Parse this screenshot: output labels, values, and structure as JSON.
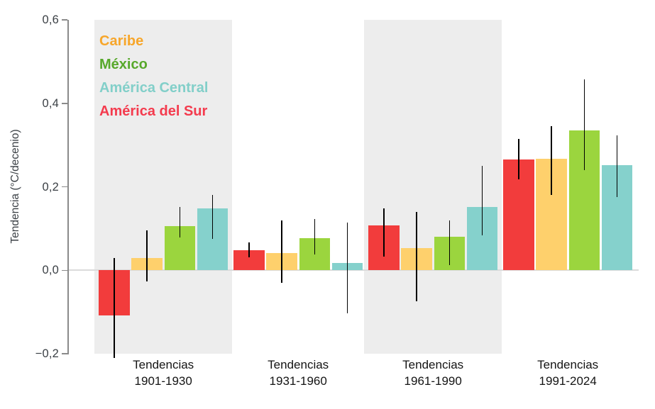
{
  "chart_data": {
    "type": "bar",
    "title": "",
    "ylabel": "Tendencia (°C/decenio)",
    "xlabel": "",
    "ylim": [
      -0.2,
      0.6
    ],
    "grid": "off",
    "legend_position": "top-left-inside",
    "yticks": [
      {
        "value": 0.6,
        "label": "0,6"
      },
      {
        "value": 0.4,
        "label": "0,4"
      },
      {
        "value": 0.2,
        "label": "0,2"
      },
      {
        "value": 0.0,
        "label": "0,0"
      },
      {
        "value": -0.2,
        "label": "−0,2"
      }
    ],
    "categories": [
      {
        "label": "Tendencias",
        "range": "1901-1930"
      },
      {
        "label": "Tendencias",
        "range": "1931-1960"
      },
      {
        "label": "Tendencias",
        "range": "1961-1990"
      },
      {
        "label": "Tendencias",
        "range": "1991-2024"
      }
    ],
    "shaded_groups": [
      0,
      2
    ],
    "series": [
      {
        "name": "América del Sur",
        "color": "#F23C3C",
        "values": [
          -0.108,
          0.048,
          0.107,
          0.265
        ],
        "err_lo": [
          -0.21,
          0.031,
          0.033,
          0.217
        ],
        "err_hi": [
          0.03,
          0.067,
          0.148,
          0.315
        ]
      },
      {
        "name": "Caribe",
        "color": "#FED06C",
        "values": [
          0.03,
          0.041,
          0.053,
          0.267
        ],
        "err_lo": [
          -0.026,
          -0.031,
          -0.074,
          0.18
        ],
        "err_hi": [
          0.095,
          0.12,
          0.14,
          0.345
        ]
      },
      {
        "name": "México",
        "color": "#9BD53E",
        "values": [
          0.105,
          0.077,
          0.08,
          0.335
        ],
        "err_lo": [
          0.079,
          0.037,
          0.013,
          0.24
        ],
        "err_hi": [
          0.152,
          0.122,
          0.12,
          0.458
        ]
      },
      {
        "name": "América Central",
        "color": "#85D1CC",
        "values": [
          0.148,
          0.017,
          0.152,
          0.252
        ],
        "err_lo": [
          0.075,
          -0.104,
          0.084,
          0.176
        ],
        "err_hi": [
          0.18,
          0.115,
          0.25,
          0.323
        ]
      }
    ],
    "legend": [
      {
        "label": "Caribe",
        "color": "#F7A62A"
      },
      {
        "label": "México",
        "color": "#57A82B"
      },
      {
        "label": "América Central",
        "color": "#82CFC9"
      },
      {
        "label": "América del Sur",
        "color": "#F43B4E"
      }
    ],
    "colors": {
      "band": "#EDEDED",
      "zero_line": "#DBDBDB",
      "axis": "#8A8A8A",
      "tick_text": "#3B4045",
      "xlabel_text": "#141414",
      "error_bar": "#000000",
      "background": "#FFFFFF"
    }
  }
}
